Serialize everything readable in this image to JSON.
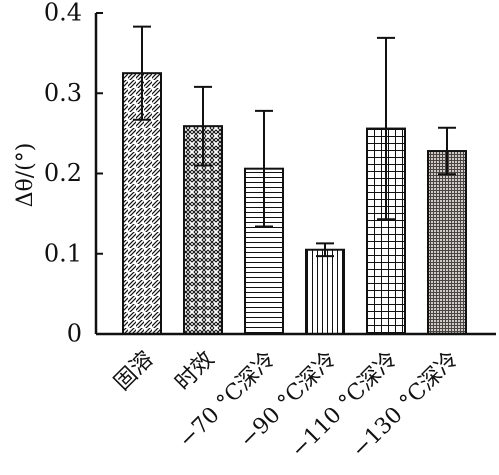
{
  "chart_data": {
    "type": "bar",
    "title": "",
    "xlabel": "",
    "ylabel": "Δθ/(°)",
    "ylim": [
      0,
      0.4
    ],
    "yticks": [
      "0",
      "0.1",
      "0.2",
      "0.3",
      "0.4"
    ],
    "grid": false,
    "categories": [
      "固溶",
      "时效",
      "−70 °C深冷",
      "−90 °C深冷",
      "−110 °C深冷",
      "−130 °C深冷"
    ],
    "values": [
      0.325,
      0.259,
      0.206,
      0.105,
      0.256,
      0.228
    ],
    "error": [
      0.058,
      0.049,
      0.072,
      0.008,
      0.113,
      0.029
    ],
    "patterns": [
      "diagonal-hatch",
      "crosshatch-diagonal",
      "horizontal-lines",
      "vertical-lines",
      "grid",
      "fine-grid-dark"
    ],
    "colors": {
      "axis": "#111111",
      "bar_stroke": "#111111",
      "dark_fill": "#8f8a87"
    }
  }
}
